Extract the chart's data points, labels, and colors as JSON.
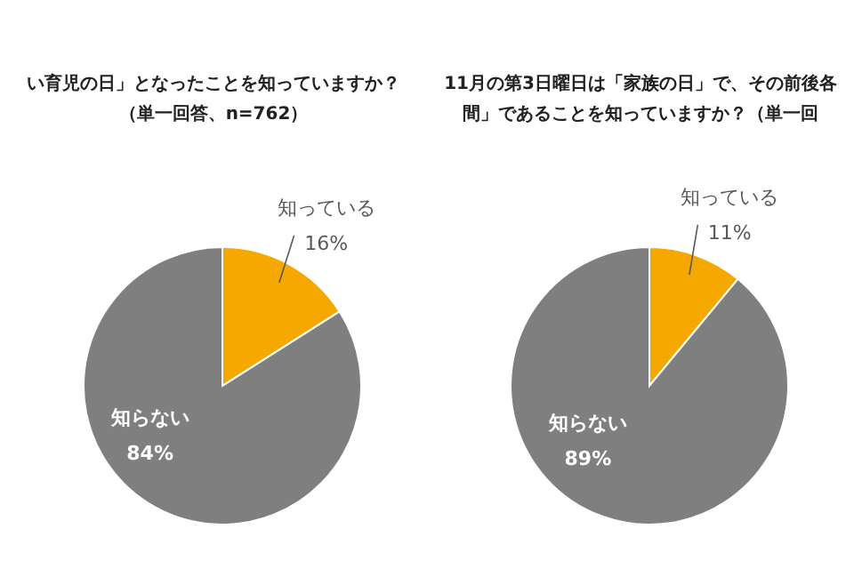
{
  "chart_data": [
    {
      "type": "pie",
      "title": "い育児の日」となったことを知っていますか？",
      "subtitle": "（単一回答、n=762）",
      "categories": [
        "知っている",
        "知らない"
      ],
      "values": [
        16,
        84
      ],
      "colors": [
        "#f5a800",
        "#7f7f7f"
      ],
      "value_labels": [
        "16%",
        "84%"
      ]
    },
    {
      "type": "pie",
      "title": "11月の第3日曜日は「家族の日」で、その前後各",
      "subtitle": "間」であることを知っていますか？（単一回",
      "categories": [
        "知っている",
        "知らない"
      ],
      "values": [
        11,
        89
      ],
      "colors": [
        "#f5a800",
        "#7f7f7f"
      ],
      "value_labels": [
        "11%",
        "89%"
      ]
    }
  ]
}
